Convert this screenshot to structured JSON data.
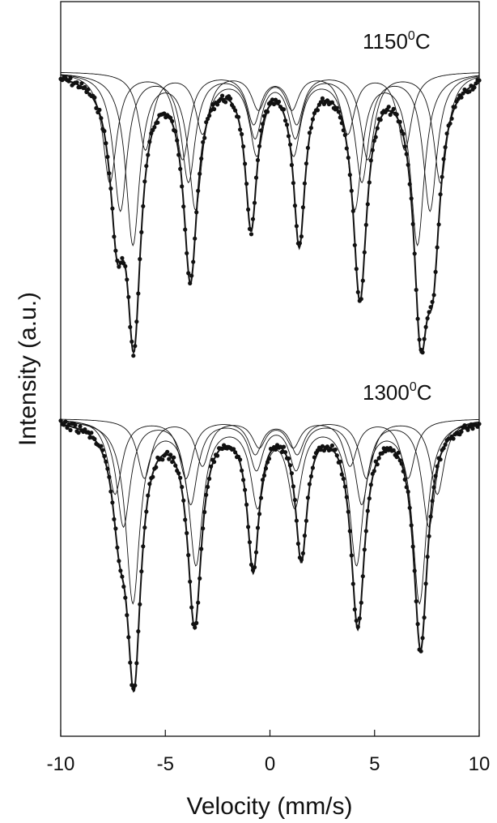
{
  "chart_data": {
    "type": "line",
    "title": "",
    "xlabel": "Velocity (mm/s)",
    "ylabel": "Intensity (a.u.)",
    "xlim": [
      -10,
      10
    ],
    "xticks": [
      -10,
      -5,
      0,
      5,
      10
    ],
    "xtick_labels": [
      "-10",
      "-5",
      "0",
      "5",
      "10"
    ],
    "y_ticks_shown": false,
    "grid": false,
    "legend": "none",
    "colors": {
      "line": "#111111",
      "points": "#111111",
      "axis": "#111111"
    },
    "panels": [
      {
        "label_main": "1150",
        "label_sup": "0",
        "label_unit": "C",
        "series": [
          {
            "kind": "total-fit",
            "components": [
              {
                "center": -6.5,
                "depth": 0.9,
                "width": 0.4
              },
              {
                "center": -3.8,
                "depth": 0.73,
                "width": 0.4
              },
              {
                "center": -0.9,
                "depth": 0.54,
                "width": 0.34
              },
              {
                "center": 1.4,
                "depth": 0.6,
                "width": 0.34
              },
              {
                "center": 4.3,
                "depth": 0.8,
                "width": 0.4
              },
              {
                "center": 7.2,
                "depth": 0.83,
                "width": 0.4
              },
              {
                "center": -7.3,
                "depth": 0.5,
                "width": 0.4
              },
              {
                "center": 7.8,
                "depth": 0.56,
                "width": 0.4
              }
            ]
          },
          {
            "kind": "subspectra",
            "sextets": [
              {
                "center": 0.25,
                "split": 13.6,
                "depth": 0.62,
                "width": 0.4
              },
              {
                "center": 0.25,
                "split": 14.8,
                "depth": 0.5,
                "width": 0.4
              },
              {
                "center": 0.25,
                "split": 15.8,
                "depth": 0.4,
                "width": 0.4
              },
              {
                "center": 0.25,
                "split": 12.4,
                "depth": 0.28,
                "width": 0.4
              }
            ]
          }
        ]
      },
      {
        "label_main": "1300",
        "label_sup": "0",
        "label_unit": "C",
        "series": [
          {
            "kind": "total-fit",
            "components": [
              {
                "center": -6.5,
                "depth": 0.93,
                "width": 0.4
              },
              {
                "center": -3.6,
                "depth": 0.75,
                "width": 0.4
              },
              {
                "center": -0.8,
                "depth": 0.54,
                "width": 0.34
              },
              {
                "center": 1.5,
                "depth": 0.5,
                "width": 0.34
              },
              {
                "center": 4.2,
                "depth": 0.76,
                "width": 0.4
              },
              {
                "center": 7.2,
                "depth": 0.85,
                "width": 0.4
              },
              {
                "center": -7.2,
                "depth": 0.3,
                "width": 0.4
              }
            ]
          },
          {
            "kind": "subspectra",
            "sextets": [
              {
                "center": 0.3,
                "split": 13.7,
                "depth": 0.68,
                "width": 0.4
              },
              {
                "center": 0.3,
                "split": 14.6,
                "depth": 0.4,
                "width": 0.4
              },
              {
                "center": 0.3,
                "split": 15.4,
                "depth": 0.28,
                "width": 0.4
              },
              {
                "center": 0.3,
                "split": 12.6,
                "depth": 0.22,
                "width": 0.4
              }
            ]
          }
        ]
      }
    ]
  }
}
